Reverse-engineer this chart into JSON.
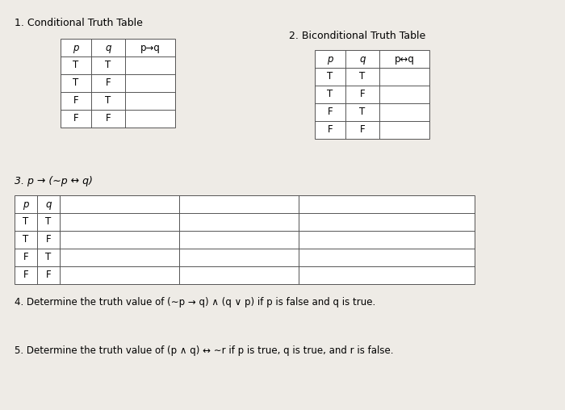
{
  "bg_color": "#eeebe6",
  "title1": "1. Conditional Truth Table",
  "title2": "2. Biconditional Truth Table",
  "title3": "3. p → (∼p ↔ q)",
  "text4": "4. Determine the truth value of (∼p → q) ∧ (q ∨ p) if p is false and q is true.",
  "text5": "5. Determine the truth value of (p ∧ q) ↔ ∼r if p is true, q is true, and r is false.",
  "table1_headers": [
    "p",
    "q",
    "p→q"
  ],
  "table1_rows": [
    [
      "T",
      "T",
      ""
    ],
    [
      "T",
      "F",
      ""
    ],
    [
      "F",
      "T",
      ""
    ],
    [
      "F",
      "F",
      ""
    ]
  ],
  "table2_headers": [
    "p",
    "q",
    "p↔q"
  ],
  "table2_rows": [
    [
      "T",
      "T",
      ""
    ],
    [
      "T",
      "F",
      ""
    ],
    [
      "F",
      "T",
      ""
    ],
    [
      "F",
      "F",
      ""
    ]
  ],
  "table3_headers": [
    "p",
    "q",
    "",
    "",
    ""
  ],
  "table3_rows": [
    [
      "T",
      "T",
      "",
      "",
      ""
    ],
    [
      "T",
      "F",
      "",
      "",
      ""
    ],
    [
      "F",
      "T",
      "",
      "",
      ""
    ],
    [
      "F",
      "F",
      "",
      "",
      ""
    ]
  ],
  "font_size": 8.5,
  "lw": 0.7
}
